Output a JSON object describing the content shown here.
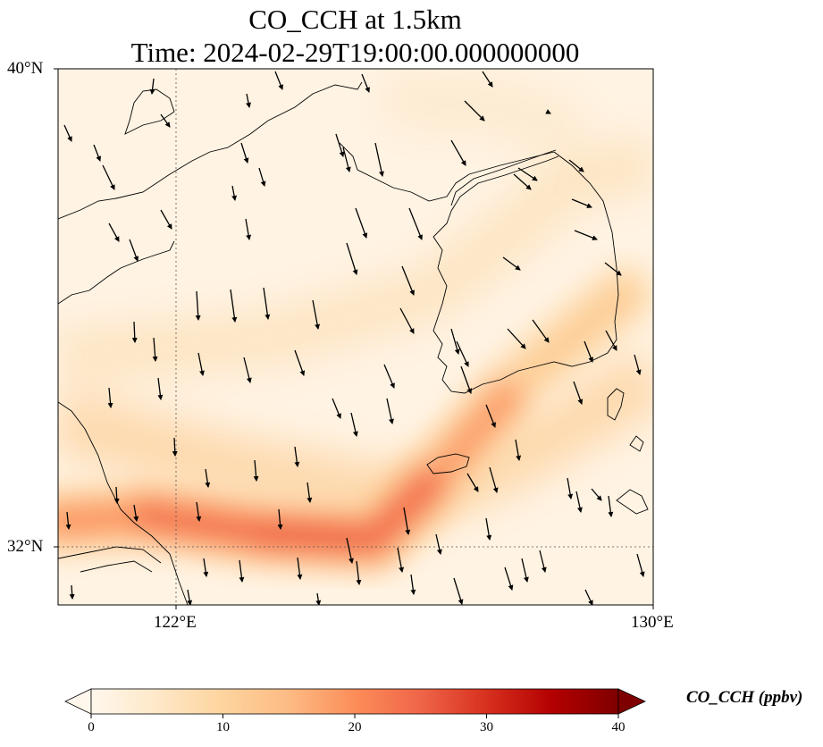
{
  "title_line1": "CO_CCH at 1.5km",
  "title_line2": "Time: 2024-02-29T19:00:00.000000000",
  "axes": {
    "lat_ticks": [
      {
        "value": 40,
        "label": "40°N"
      },
      {
        "value": 32,
        "label": "32°N"
      }
    ],
    "lon_ticks": [
      {
        "value": 122,
        "label": "122°E"
      },
      {
        "value": 130,
        "label": "130°E"
      }
    ],
    "lon_range": [
      120,
      130
    ],
    "lat_range": [
      31,
      40
    ],
    "gridlines": "dotted at 122°E and 32°N"
  },
  "colorbar": {
    "label": "CO_CCH (ppbv)",
    "ticks": [
      {
        "value": 0,
        "label": "0"
      },
      {
        "value": 10,
        "label": "10"
      },
      {
        "value": 20,
        "label": "20"
      },
      {
        "value": 30,
        "label": "30"
      },
      {
        "value": 40,
        "label": "40"
      }
    ],
    "range": [
      0,
      40
    ],
    "extend": "both",
    "colormap": "OrRd",
    "stops": [
      "#fff7ec",
      "#fee8c8",
      "#fdd49e",
      "#fdbb84",
      "#fc8d59",
      "#ef6548",
      "#d7301f",
      "#b30000",
      "#7f0000"
    ]
  },
  "chart_data": {
    "type": "heatmap",
    "variable": "CO_CCH",
    "level": "1.5km",
    "units": "ppbv",
    "plume": {
      "description_hidden": true,
      "peak_value": 26,
      "path_lonlat": [
        [
          120.0,
          32.4
        ],
        [
          121.5,
          32.5
        ],
        [
          123.5,
          32.2
        ],
        [
          125.3,
          32.1
        ],
        [
          126.5,
          33.3
        ],
        [
          127.8,
          34.8
        ],
        [
          129.5,
          36.2
        ]
      ],
      "core_values": [
        16,
        22,
        24,
        25,
        22,
        14,
        9
      ]
    },
    "overlay": "wind vectors, predominantly north-to-south",
    "coastlines": true
  }
}
